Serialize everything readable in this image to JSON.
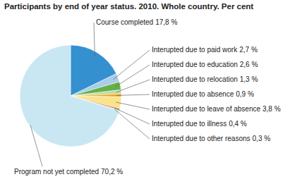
{
  "chart_data": {
    "type": "pie",
    "title": "Participants by end of year status. 2010. Whole country. Per cent",
    "categories": [
      "Course completed",
      "Interupted due to paid work",
      "Interupted due to education",
      "Interupted due to relocation",
      "Interupted due to absence",
      "Interupted due to leave of absence",
      "Interupted due to illness",
      "Interupted due to other reasons",
      "Program not yet completed"
    ],
    "values": [
      17.8,
      2.7,
      2.6,
      1.3,
      0.9,
      3.8,
      0.4,
      0.3,
      70.2
    ],
    "value_labels": [
      "17,8 %",
      "2,7 %",
      "2,6 %",
      "1,3 %",
      "0,9 %",
      "3,8 %",
      "0,4 %",
      "0,3 %",
      "70,2 %"
    ],
    "colors": [
      "#3590d0",
      "#a9cdea",
      "#66b04a",
      "#bcdda6",
      "#f2a31f",
      "#fbe38c",
      "#9a5a2c",
      "#e9c6a2",
      "#c8e7f3"
    ],
    "data_labels": true
  }
}
